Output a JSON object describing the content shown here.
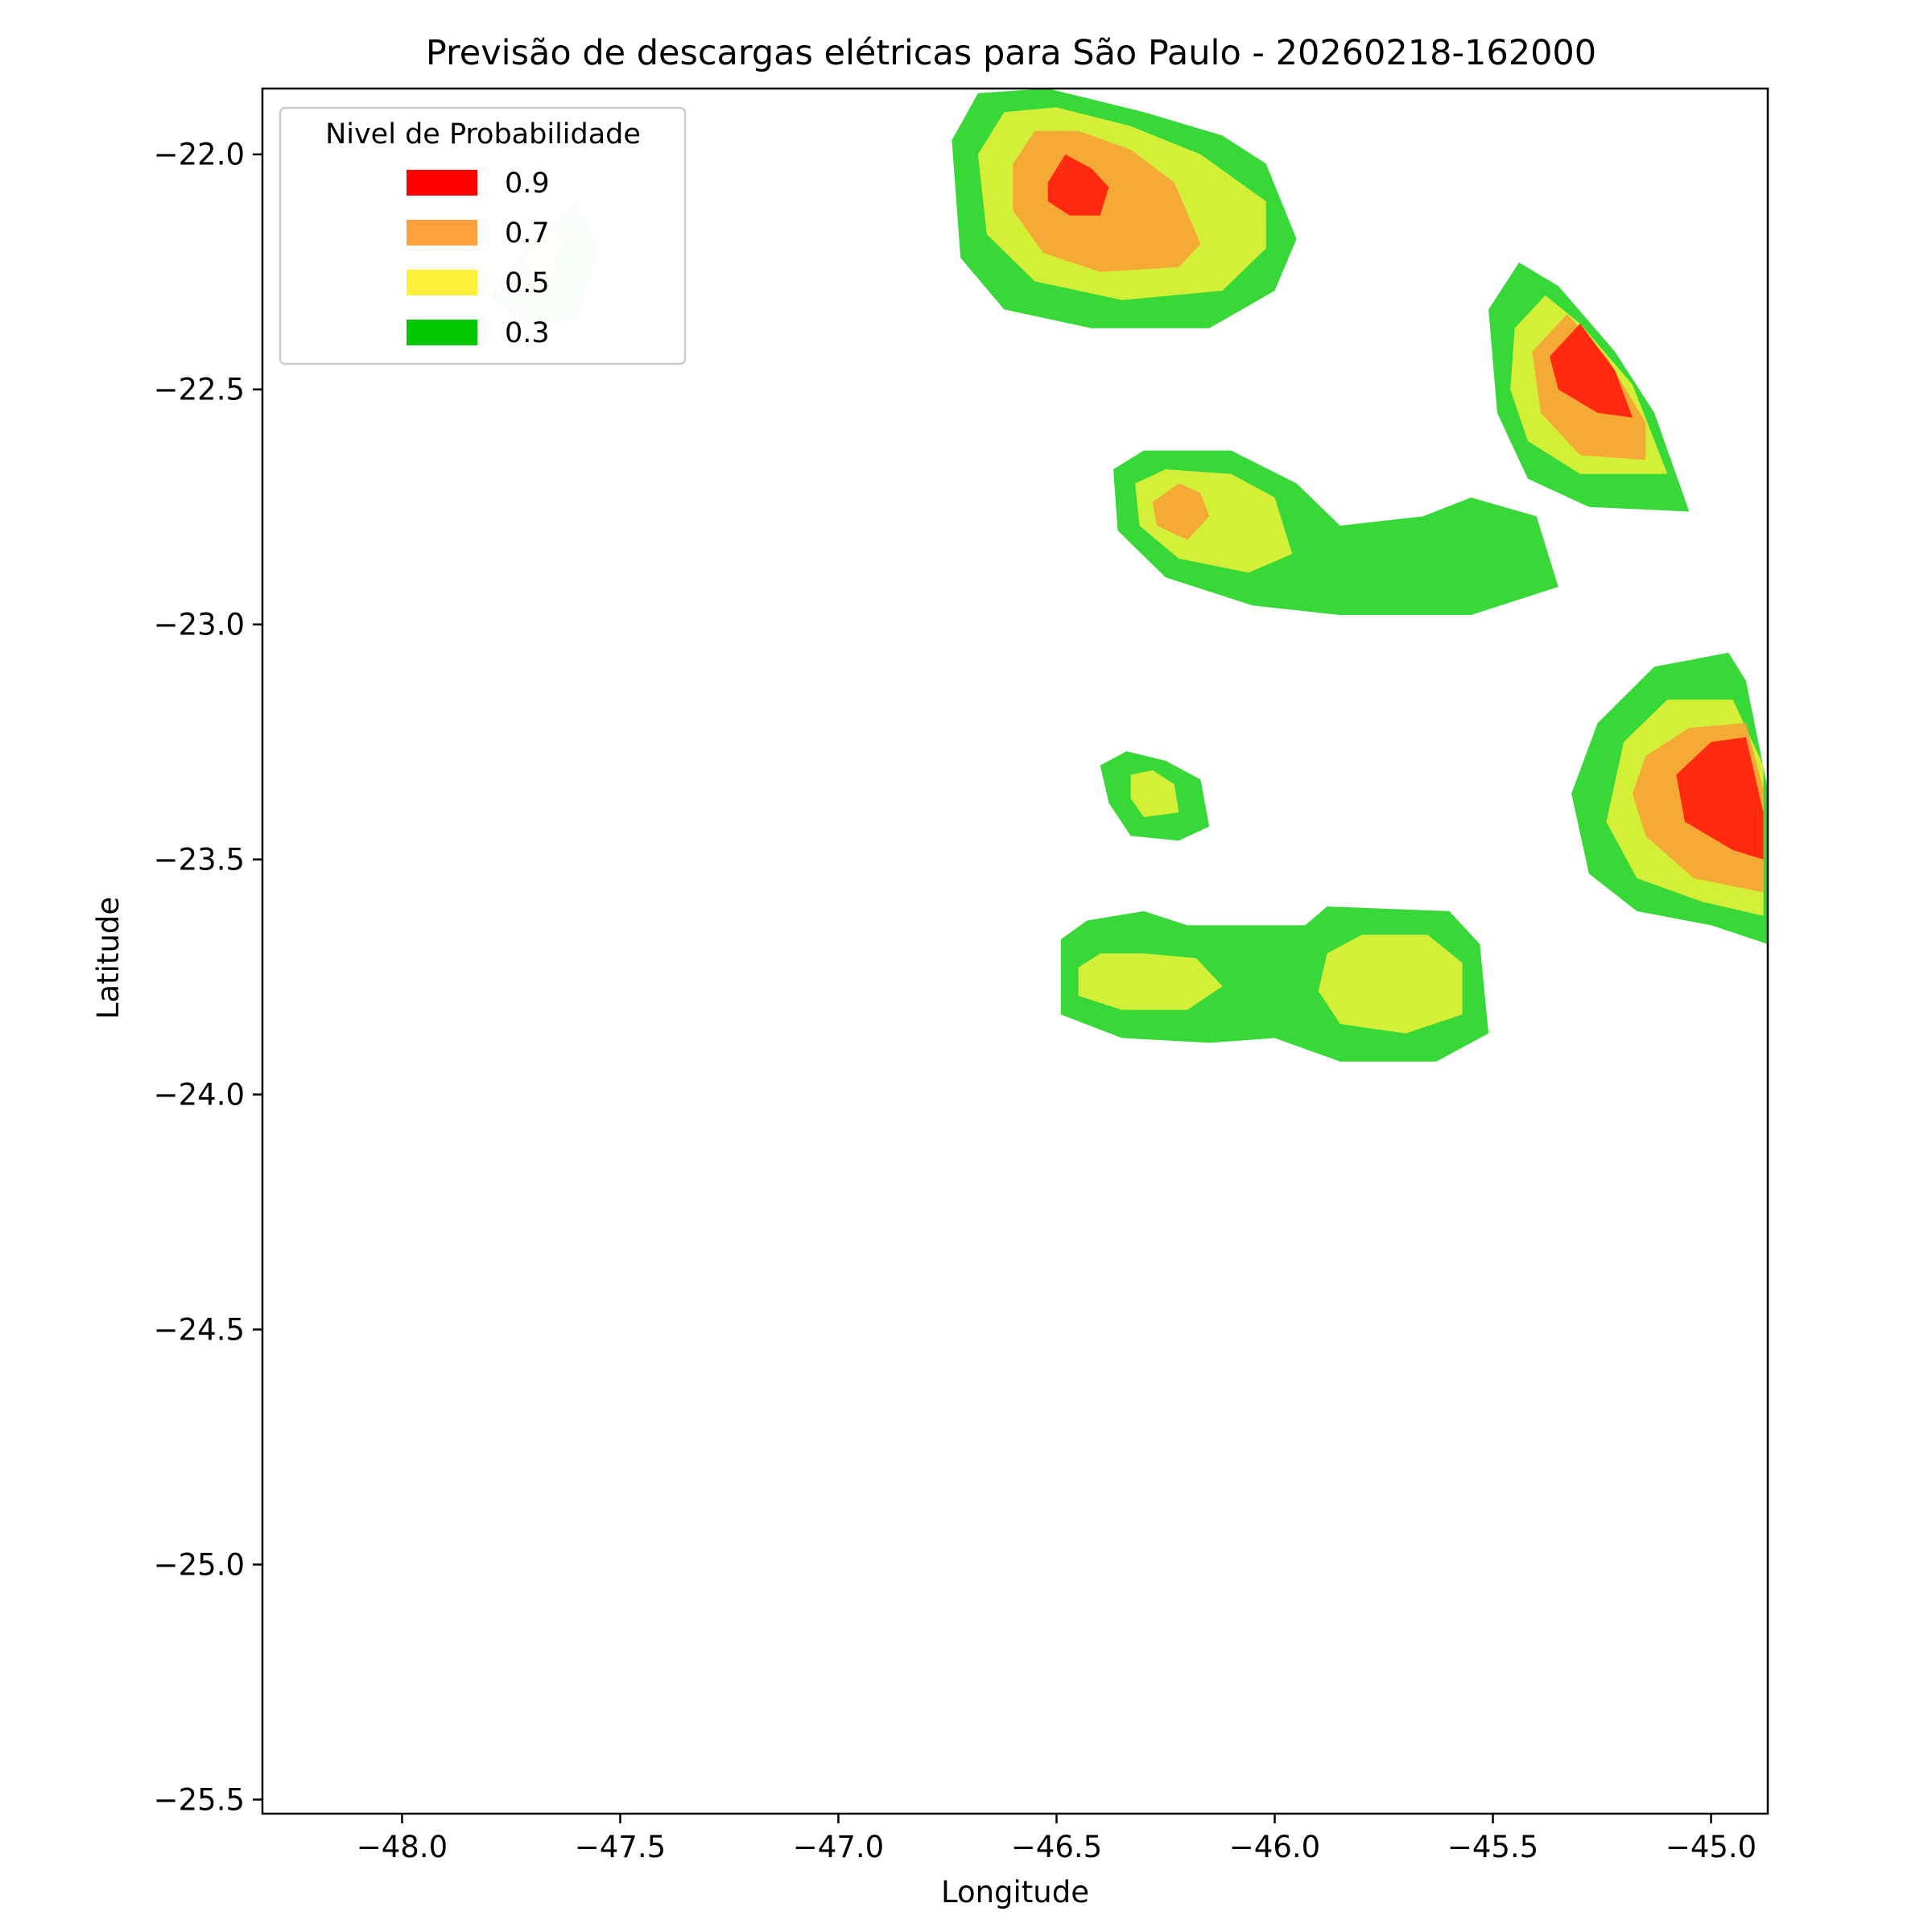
{
  "chart_data": {
    "type": "contour-map",
    "title": "Previsão de descargas elétricas para São Paulo - 20260218-162000",
    "xlabel": "Longitude",
    "ylabel": "Latitude",
    "xlim": [
      -48.32,
      -44.87
    ],
    "ylim": [
      -25.53,
      -21.86
    ],
    "x_ticks": [
      {
        "value": -48.0,
        "label": "−48.0"
      },
      {
        "value": -47.5,
        "label": "−47.5"
      },
      {
        "value": -47.0,
        "label": "−47.0"
      },
      {
        "value": -46.5,
        "label": "−46.5"
      },
      {
        "value": -46.0,
        "label": "−46.0"
      },
      {
        "value": -45.5,
        "label": "−45.5"
      },
      {
        "value": -45.0,
        "label": "−45.0"
      }
    ],
    "y_ticks": [
      {
        "value": -22.0,
        "label": "−22.0"
      },
      {
        "value": -22.5,
        "label": "−22.5"
      },
      {
        "value": -23.0,
        "label": "−23.0"
      },
      {
        "value": -23.5,
        "label": "−23.5"
      },
      {
        "value": -24.0,
        "label": "−24.0"
      },
      {
        "value": -24.5,
        "label": "−24.5"
      },
      {
        "value": -25.0,
        "label": "−25.0"
      },
      {
        "value": -25.5,
        "label": "−25.5"
      }
    ],
    "grid": false,
    "legend": {
      "title": "Nivel de Probabilidade",
      "placement": "top-left",
      "entries": [
        {
          "label": "0.9",
          "color": "#ff0000"
        },
        {
          "label": "0.7",
          "color": "#ffa03c"
        },
        {
          "label": "0.5",
          "color": "#fff03c"
        },
        {
          "label": "0.3",
          "color": "#00c800"
        }
      ]
    },
    "level_colors": {
      "0.3": "#38d838",
      "0.5": "#d4ef38",
      "0.7": "#f6aa36",
      "0.9": "#ff2a10"
    },
    "faded_colors": {
      "0.3": "#d4f3d4",
      "0.5": "#f4f8d6"
    },
    "cells": [
      {
        "id": "cell-north-1",
        "center": [
          -46.48,
          -22.09
        ],
        "levels": {
          "0.3": [
            [
              -46.74,
              -21.97
            ],
            [
              -46.68,
              -21.87
            ],
            [
              -46.52,
              -21.86
            ],
            [
              -46.3,
              -21.91
            ],
            [
              -46.12,
              -21.96
            ],
            [
              -46.02,
              -22.02
            ],
            [
              -45.95,
              -22.18
            ],
            [
              -46.0,
              -22.29
            ],
            [
              -46.15,
              -22.37
            ],
            [
              -46.42,
              -22.37
            ],
            [
              -46.62,
              -22.33
            ],
            [
              -46.72,
              -22.22
            ]
          ],
          "0.5": [
            [
              -46.68,
              -22.0
            ],
            [
              -46.62,
              -21.91
            ],
            [
              -46.5,
              -21.9
            ],
            [
              -46.33,
              -21.94
            ],
            [
              -46.17,
              -22.0
            ],
            [
              -46.02,
              -22.1
            ],
            [
              -46.02,
              -22.2
            ],
            [
              -46.12,
              -22.29
            ],
            [
              -46.35,
              -22.31
            ],
            [
              -46.55,
              -22.27
            ],
            [
              -46.66,
              -22.17
            ]
          ],
          "0.7": [
            [
              -46.6,
              -22.02
            ],
            [
              -46.55,
              -21.95
            ],
            [
              -46.45,
              -21.95
            ],
            [
              -46.33,
              -21.99
            ],
            [
              -46.23,
              -22.06
            ],
            [
              -46.17,
              -22.19
            ],
            [
              -46.22,
              -22.24
            ],
            [
              -46.4,
              -22.25
            ],
            [
              -46.53,
              -22.21
            ],
            [
              -46.6,
              -22.12
            ]
          ],
          "0.9": [
            [
              -46.52,
              -22.06
            ],
            [
              -46.48,
              -22.0
            ],
            [
              -46.42,
              -22.03
            ],
            [
              -46.38,
              -22.07
            ],
            [
              -46.4,
              -22.13
            ],
            [
              -46.47,
              -22.13
            ],
            [
              -46.52,
              -22.1
            ]
          ]
        }
      },
      {
        "id": "cell-north-east",
        "center": [
          -45.27,
          -22.53
        ],
        "levels": {
          "0.3": [
            [
              -45.51,
              -22.33
            ],
            [
              -45.44,
              -22.23
            ],
            [
              -45.35,
              -22.28
            ],
            [
              -45.22,
              -22.42
            ],
            [
              -45.13,
              -22.55
            ],
            [
              -45.05,
              -22.76
            ],
            [
              -45.28,
              -22.75
            ],
            [
              -45.42,
              -22.69
            ],
            [
              -45.49,
              -22.55
            ]
          ],
          "0.5": [
            [
              -45.45,
              -22.37
            ],
            [
              -45.38,
              -22.3
            ],
            [
              -45.3,
              -22.36
            ],
            [
              -45.18,
              -22.49
            ],
            [
              -45.1,
              -22.68
            ],
            [
              -45.3,
              -22.68
            ],
            [
              -45.42,
              -22.61
            ],
            [
              -45.46,
              -22.5
            ]
          ],
          "0.7": [
            [
              -45.41,
              -22.42
            ],
            [
              -45.33,
              -22.34
            ],
            [
              -45.24,
              -22.43
            ],
            [
              -45.15,
              -22.57
            ],
            [
              -45.15,
              -22.65
            ],
            [
              -45.3,
              -22.64
            ],
            [
              -45.39,
              -22.55
            ]
          ],
          "0.9": [
            [
              -45.37,
              -22.43
            ],
            [
              -45.3,
              -22.36
            ],
            [
              -45.22,
              -22.46
            ],
            [
              -45.18,
              -22.56
            ],
            [
              -45.26,
              -22.55
            ],
            [
              -45.35,
              -22.5
            ]
          ]
        }
      },
      {
        "id": "cell-center-north",
        "center": [
          -46.2,
          -22.77
        ],
        "levels": {
          "0.3": [
            [
              -46.37,
              -22.67
            ],
            [
              -46.3,
              -22.63
            ],
            [
              -46.1,
              -22.63
            ],
            [
              -45.95,
              -22.7
            ],
            [
              -45.85,
              -22.79
            ],
            [
              -45.66,
              -22.77
            ],
            [
              -45.55,
              -22.73
            ],
            [
              -45.4,
              -22.77
            ],
            [
              -45.35,
              -22.92
            ],
            [
              -45.55,
              -22.98
            ],
            [
              -45.85,
              -22.98
            ],
            [
              -46.05,
              -22.96
            ],
            [
              -46.25,
              -22.9
            ],
            [
              -46.36,
              -22.8
            ]
          ],
          "0.5": [
            [
              -46.32,
              -22.7
            ],
            [
              -46.25,
              -22.67
            ],
            [
              -46.1,
              -22.68
            ],
            [
              -46.0,
              -22.73
            ],
            [
              -45.96,
              -22.85
            ],
            [
              -46.06,
              -22.89
            ],
            [
              -46.22,
              -22.86
            ],
            [
              -46.31,
              -22.79
            ]
          ],
          "0.7": [
            [
              -46.28,
              -22.74
            ],
            [
              -46.22,
              -22.7
            ],
            [
              -46.17,
              -22.72
            ],
            [
              -46.15,
              -22.77
            ],
            [
              -46.2,
              -22.82
            ],
            [
              -46.27,
              -22.79
            ]
          ]
        }
      },
      {
        "id": "cell-center-small",
        "center": [
          -46.27,
          -23.36
        ],
        "levels": {
          "0.3": [
            [
              -46.4,
              -23.3
            ],
            [
              -46.34,
              -23.27
            ],
            [
              -46.25,
              -23.29
            ],
            [
              -46.17,
              -23.33
            ],
            [
              -46.15,
              -23.43
            ],
            [
              -46.22,
              -23.46
            ],
            [
              -46.33,
              -23.45
            ],
            [
              -46.38,
              -23.38
            ]
          ],
          "0.5": [
            [
              -46.33,
              -23.32
            ],
            [
              -46.28,
              -23.31
            ],
            [
              -46.23,
              -23.34
            ],
            [
              -46.22,
              -23.4
            ],
            [
              -46.3,
              -23.41
            ],
            [
              -46.33,
              -23.37
            ]
          ]
        }
      },
      {
        "id": "cell-east",
        "center": [
          -44.97,
          -23.4
        ],
        "levels": {
          "0.3": [
            [
              -45.26,
              -23.21
            ],
            [
              -45.13,
              -23.09
            ],
            [
              -44.96,
              -23.06
            ],
            [
              -44.92,
              -23.12
            ],
            [
              -44.87,
              -23.35
            ],
            [
              -44.87,
              -23.68
            ],
            [
              -45.0,
              -23.64
            ],
            [
              -45.17,
              -23.61
            ],
            [
              -45.28,
              -23.53
            ],
            [
              -45.32,
              -23.36
            ]
          ],
          "0.5": [
            [
              -45.2,
              -23.25
            ],
            [
              -45.1,
              -23.16
            ],
            [
              -44.95,
              -23.16
            ],
            [
              -44.88,
              -23.3
            ],
            [
              -44.88,
              -23.62
            ],
            [
              -45.02,
              -23.59
            ],
            [
              -45.17,
              -23.54
            ],
            [
              -45.24,
              -23.42
            ]
          ],
          "0.7": [
            [
              -45.15,
              -23.28
            ],
            [
              -45.05,
              -23.22
            ],
            [
              -44.92,
              -23.21
            ],
            [
              -44.88,
              -23.35
            ],
            [
              -44.88,
              -23.57
            ],
            [
              -45.04,
              -23.54
            ],
            [
              -45.15,
              -23.45
            ],
            [
              -45.18,
              -23.36
            ]
          ],
          "0.9": [
            [
              -45.08,
              -23.32
            ],
            [
              -45.0,
              -23.25
            ],
            [
              -44.92,
              -23.24
            ],
            [
              -44.88,
              -23.4
            ],
            [
              -44.88,
              -23.5
            ],
            [
              -44.95,
              -23.48
            ],
            [
              -45.06,
              -23.42
            ]
          ]
        }
      },
      {
        "id": "cell-south",
        "center": [
          -46.05,
          -23.78
        ],
        "levels": {
          "0.3": [
            [
              -46.49,
              -23.67
            ],
            [
              -46.43,
              -23.63
            ],
            [
              -46.3,
              -23.61
            ],
            [
              -46.2,
              -23.64
            ],
            [
              -45.93,
              -23.64
            ],
            [
              -45.88,
              -23.6
            ],
            [
              -45.6,
              -23.61
            ],
            [
              -45.53,
              -23.68
            ],
            [
              -45.51,
              -23.87
            ],
            [
              -45.63,
              -23.93
            ],
            [
              -45.85,
              -23.93
            ],
            [
              -46.0,
              -23.88
            ],
            [
              -46.15,
              -23.89
            ],
            [
              -46.35,
              -23.88
            ],
            [
              -46.49,
              -23.83
            ]
          ],
          "0.5": [
            [
              -46.45,
              -23.73
            ],
            [
              -46.4,
              -23.7
            ],
            [
              -46.3,
              -23.7
            ],
            [
              -46.18,
              -23.71
            ],
            [
              -46.12,
              -23.77
            ],
            [
              -46.2,
              -23.82
            ],
            [
              -46.35,
              -23.82
            ],
            [
              -46.45,
              -23.79
            ]
          ],
          "0.5b": [
            [
              -45.88,
              -23.7
            ],
            [
              -45.8,
              -23.66
            ],
            [
              -45.65,
              -23.66
            ],
            [
              -45.57,
              -23.72
            ],
            [
              -45.57,
              -23.83
            ],
            [
              -45.7,
              -23.87
            ],
            [
              -45.85,
              -23.85
            ],
            [
              -45.9,
              -23.78
            ]
          ]
        }
      },
      {
        "id": "cell-northwest-faded",
        "center": [
          -47.67,
          -22.22
        ],
        "faded": true,
        "levels": {
          "0.3": [
            [
              -47.8,
              -22.3
            ],
            [
              -47.7,
              -22.18
            ],
            [
              -47.6,
              -22.1
            ],
            [
              -47.55,
              -22.2
            ],
            [
              -47.6,
              -22.35
            ],
            [
              -47.72,
              -22.36
            ]
          ],
          "0.5": [
            [
              -47.72,
              -22.22
            ],
            [
              -47.68,
              -22.15
            ],
            [
              -47.63,
              -22.18
            ],
            [
              -47.65,
              -22.26
            ],
            [
              -47.7,
              -22.27
            ]
          ]
        }
      }
    ]
  }
}
